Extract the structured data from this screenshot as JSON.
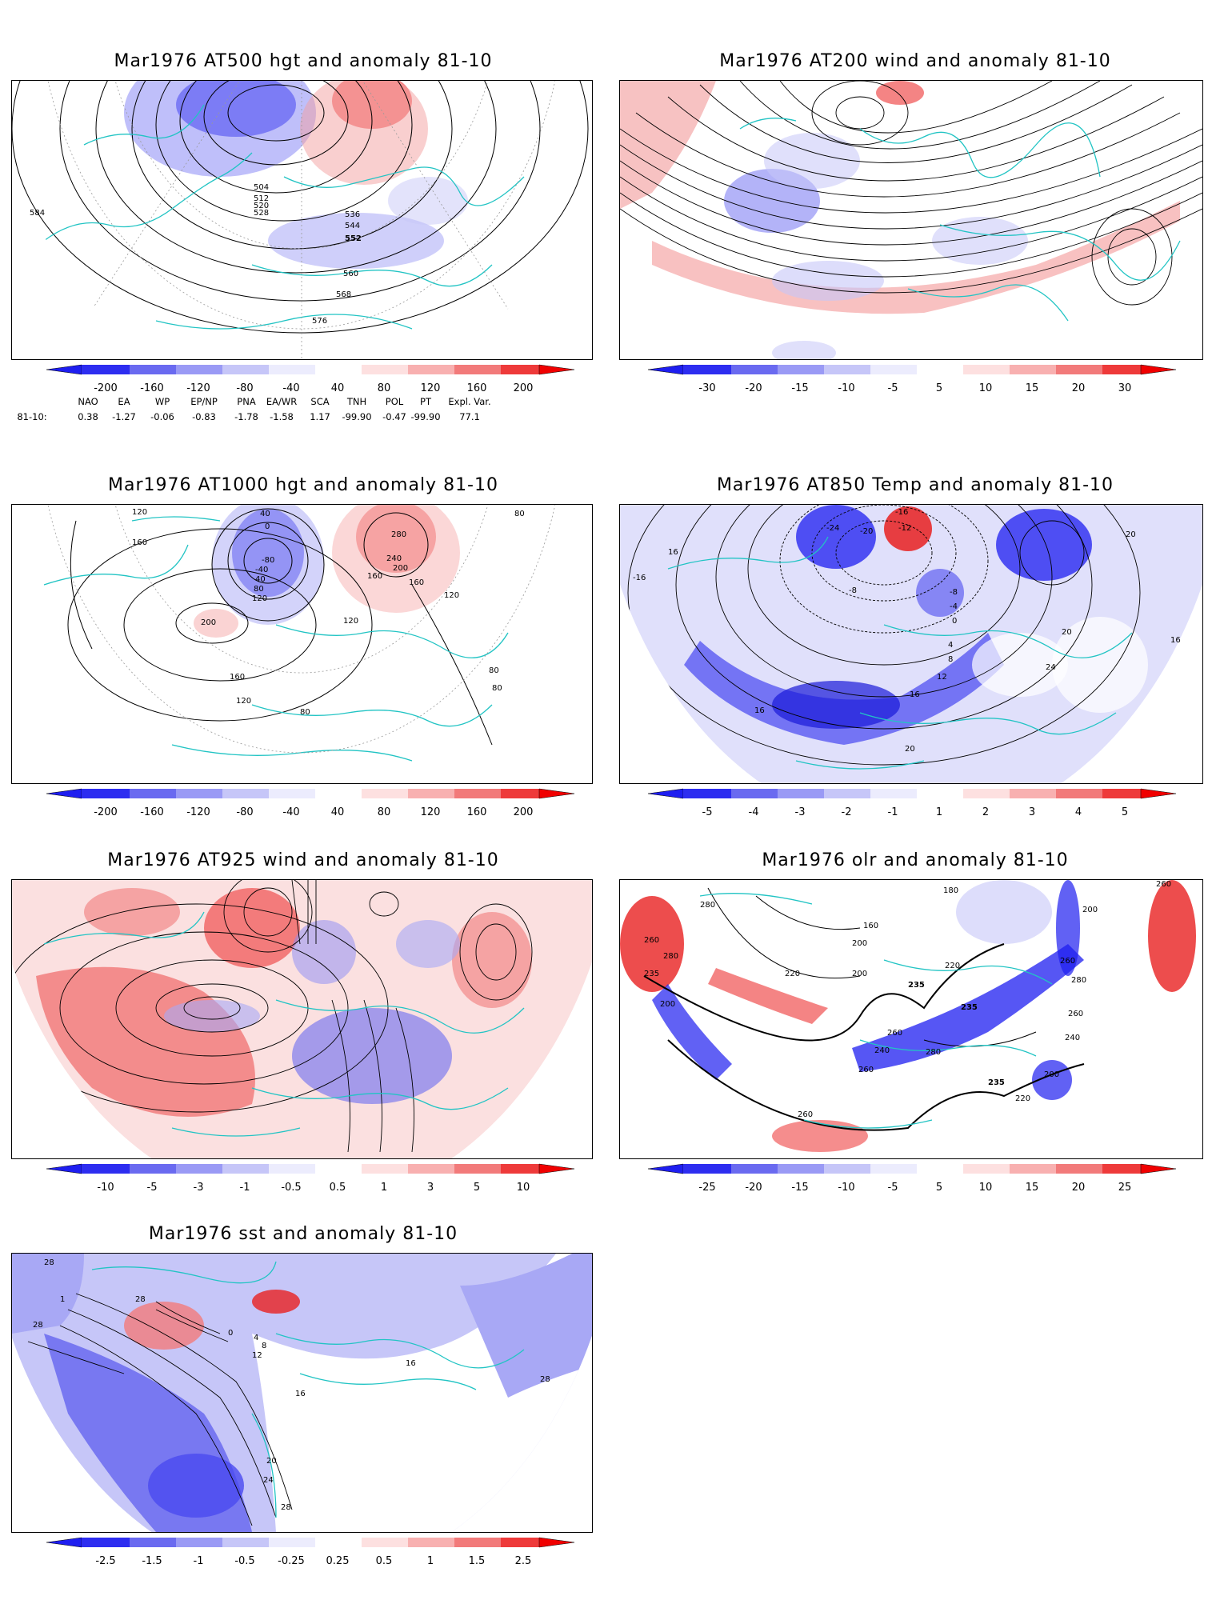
{
  "panels": {
    "p500": {
      "title": "Mar1976 AT500 hgt and anomaly 81-10",
      "contour_labels": [
        "504",
        "512",
        "520",
        "528",
        "536",
        "544",
        "552",
        "560",
        "568",
        "576",
        "584",
        "584",
        "584",
        "584"
      ],
      "colorbar": [
        "-200",
        "-160",
        "-120",
        "-80",
        "-40",
        "40",
        "80",
        "120",
        "160",
        "200"
      ]
    },
    "p200": {
      "title": "Mar1976 AT200 wind and anomaly 81-10",
      "colorbar": [
        "-30",
        "-20",
        "-15",
        "-10",
        "-5",
        "5",
        "10",
        "15",
        "20",
        "30"
      ]
    },
    "p1000": {
      "title": "Mar1976 AT1000 hgt and anomaly 81-10",
      "contour_labels": [
        "120",
        "160",
        "200",
        "40",
        "0",
        "-80",
        "-40",
        "40",
        "80",
        "120",
        "280",
        "240",
        "200",
        "160",
        "160",
        "120",
        "120",
        "80",
        "80",
        "80",
        "160",
        "120",
        "80"
      ],
      "colorbar": [
        "-200",
        "-160",
        "-120",
        "-80",
        "-40",
        "40",
        "80",
        "120",
        "160",
        "200"
      ]
    },
    "p850": {
      "title": "Mar1976 AT850 Temp and anomaly 81-10",
      "contour_labels": [
        "-16",
        "-24",
        "-20",
        "-12",
        "-8",
        "-8",
        "-4",
        "0",
        "4",
        "8",
        "12",
        "16",
        "20",
        "24",
        "20",
        "16",
        "16",
        "20",
        "-16",
        "16"
      ],
      "colorbar": [
        "-5",
        "-4",
        "-3",
        "-2",
        "-1",
        "1",
        "2",
        "3",
        "4",
        "5"
      ]
    },
    "p925": {
      "title": "Mar1976 AT925 wind and anomaly 81-10",
      "colorbar": [
        "-10",
        "-5",
        "-3",
        "-1",
        "-0.5",
        "0.5",
        "1",
        "3",
        "5",
        "10"
      ]
    },
    "polr": {
      "title": "Mar1976 olr and anomaly 81-10",
      "contour_labels": [
        "260",
        "280",
        "260",
        "280",
        "235",
        "200",
        "180",
        "160",
        "200",
        "220",
        "200",
        "220",
        "235",
        "235",
        "240",
        "260",
        "280",
        "260",
        "200",
        "235",
        "220",
        "240",
        "260",
        "200",
        "260",
        "280",
        "260"
      ],
      "colorbar": [
        "-25",
        "-20",
        "-15",
        "-10",
        "-5",
        "5",
        "10",
        "15",
        "20",
        "25"
      ]
    },
    "psst": {
      "title": "Mar1976 sst and anomaly 81-10",
      "contour_labels": [
        "28",
        "28",
        "1",
        "0",
        "4",
        "8",
        "12",
        "16",
        "20",
        "24",
        "28",
        "16",
        "28",
        "28"
      ],
      "colorbar": [
        "-2.5",
        "-1.5",
        "-1",
        "-0.5",
        "-0.25",
        "0.25",
        "0.5",
        "1",
        "1.5",
        "2.5"
      ]
    }
  },
  "teleconnection": {
    "headers": [
      "NAO",
      "EA",
      "WP",
      "EP/NP",
      "PNA",
      "EA/WR",
      "SCA",
      "TNH",
      "POL",
      "PT",
      "Expl. Var."
    ],
    "row_label": "81-10:",
    "values": [
      "0.38",
      "-1.27",
      "-0.06",
      "-0.83",
      "-1.78",
      "-1.58",
      "1.17",
      "-99.90",
      "-0.47",
      "-99.90",
      "77.1"
    ]
  },
  "colors": {
    "coast": "#22c4c4",
    "contour": "#000000",
    "neg": "#3b3bf0",
    "pos": "#f03232"
  }
}
